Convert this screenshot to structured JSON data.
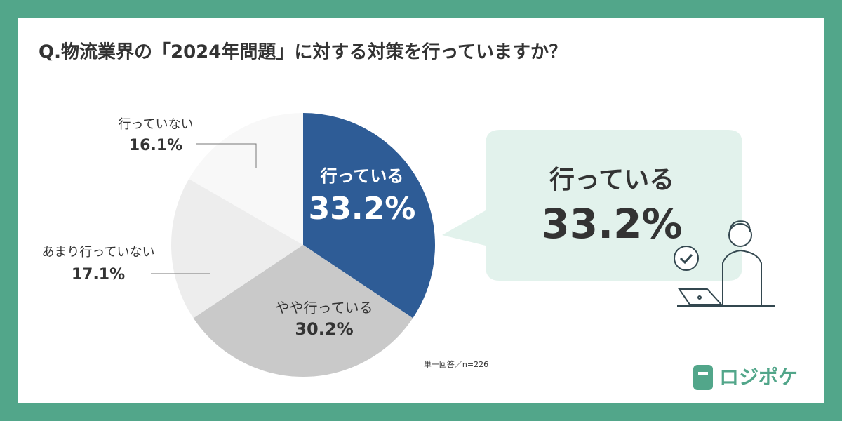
{
  "chart_data": {
    "type": "pie",
    "title": "Q.物流業界の「2024年問題」に対する対策を行っていますか？",
    "categories": [
      "行っている",
      "やや行っている",
      "あまり行っていない",
      "行っていない"
    ],
    "values": [
      33.2,
      30.2,
      17.1,
      16.1
    ],
    "value_labels": [
      "33.2%",
      "30.2%",
      "17.1%",
      "16.1%"
    ],
    "colors": [
      "#2e5c96",
      "#c9c9c9",
      "#ededed",
      "#f8f8f8"
    ],
    "note": "単一回答／n=226"
  },
  "brand": "ロジポケ"
}
